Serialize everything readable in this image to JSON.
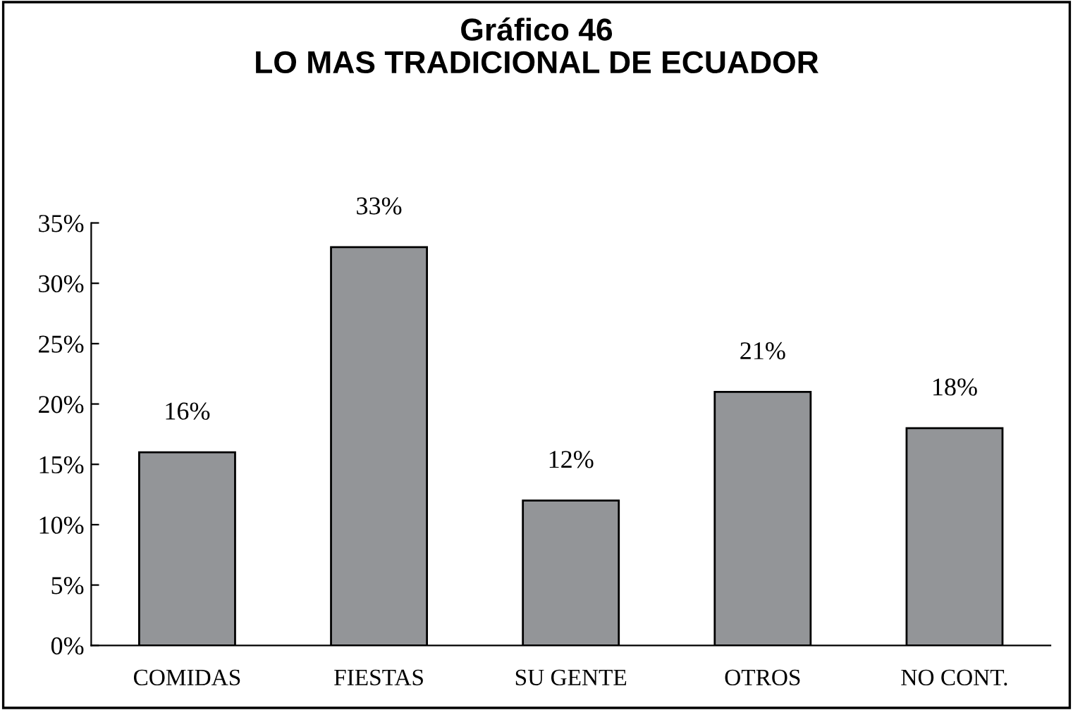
{
  "chart_data": {
    "type": "bar",
    "title": "Gráfico 46\nLO MAS TRADICIONAL DE ECUADOR",
    "categories": [
      "COMIDAS",
      "FIESTAS",
      "SU GENTE",
      "OTROS",
      "NO CONT."
    ],
    "values": [
      16,
      33,
      12,
      21,
      18
    ],
    "value_labels": [
      "16%",
      "33%",
      "12%",
      "21%",
      "18%"
    ],
    "color": "#939598",
    "ylim": [
      0,
      35
    ],
    "yticks": [
      {
        "value": 0,
        "label": "0%"
      },
      {
        "value": 5,
        "label": "5%"
      },
      {
        "value": 10,
        "label": "10%"
      },
      {
        "value": 15,
        "label": "15%"
      },
      {
        "value": 20,
        "label": "20%"
      },
      {
        "value": 25,
        "label": "25%"
      },
      {
        "value": 30,
        "label": "30%"
      },
      {
        "value": 35,
        "label": "35%"
      }
    ],
    "grid": false
  }
}
